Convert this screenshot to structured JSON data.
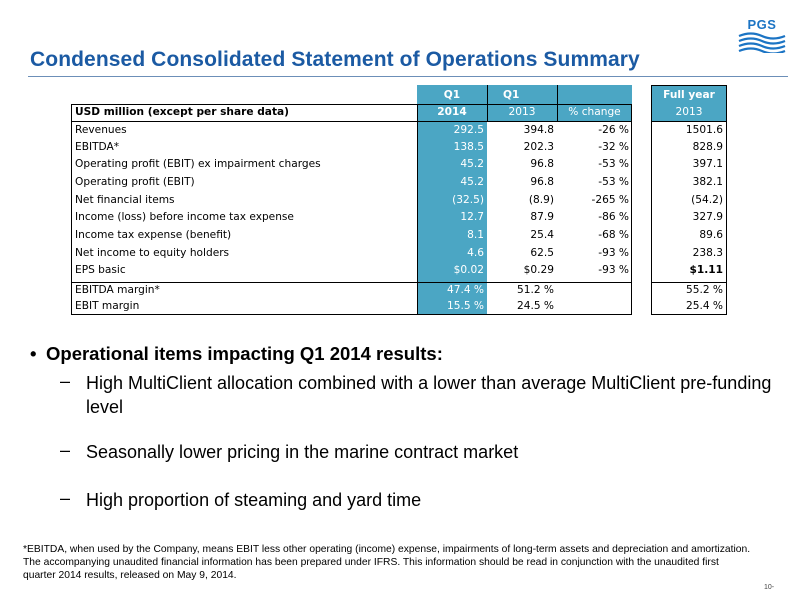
{
  "title": "Condensed Consolidated Statement of Operations Summary",
  "logo_text": "PGS",
  "table": {
    "header_top": {
      "col_2014": "Q1",
      "col_2013": "Q1",
      "col_fy": "Full year"
    },
    "header_bottom": {
      "label": "USD million (except per share data)",
      "col_2014": "2014",
      "col_2013": "2013",
      "col_pct": "% change",
      "col_fy": "2013"
    },
    "rows": [
      {
        "label": "Revenues",
        "v2014": "292.5",
        "v2013": "394.8",
        "pct": "-26 %",
        "fy": "1501.6"
      },
      {
        "label": "EBITDA*",
        "v2014": "138.5",
        "v2013": "202.3",
        "pct": "-32 %",
        "fy": "828.9"
      },
      {
        "label": "Operating profit (EBIT) ex impairment charges",
        "v2014": "45.2",
        "v2013": "96.8",
        "pct": "-53 %",
        "fy": "397.1"
      },
      {
        "label": "Operating profit (EBIT)",
        "v2014": "45.2",
        "v2013": "96.8",
        "pct": "-53 %",
        "fy": "382.1"
      },
      {
        "label": "Net financial items",
        "v2014": "(32.5)",
        "v2013": "(8.9)",
        "pct": "-265 %",
        "fy": "(54.2)"
      },
      {
        "label": "Income (loss) before income tax expense",
        "v2014": "12.7",
        "v2013": "87.9",
        "pct": "-86 %",
        "fy": "327.9"
      },
      {
        "label": "Income tax expense (benefit)",
        "v2014": "8.1",
        "v2013": "25.4",
        "pct": "-68 %",
        "fy": "89.6"
      },
      {
        "label": "Net income to equity holders",
        "v2014": "4.6",
        "v2013": "62.5",
        "pct": "-93 %",
        "fy": "238.3"
      },
      {
        "label": "EPS basic",
        "v2014": "$0.02",
        "v2013": "$0.29",
        "pct": "-93 %",
        "fy": "$1.11"
      },
      {
        "label": "EBITDA margin*",
        "v2014": "47.4 %",
        "v2013": "51.2 %",
        "pct": "",
        "fy": "55.2 %"
      },
      {
        "label": "EBIT margin",
        "v2014": "15.5 %",
        "v2013": "24.5 %",
        "pct": "",
        "fy": "25.4 %"
      }
    ]
  },
  "bullets": {
    "main": "Operational items impacting Q1 2014 results:",
    "bullet_char": "•",
    "dash_char": "–",
    "items": [
      "High MultiClient allocation combined with a lower than average MultiClient pre-funding level",
      "Seasonally lower pricing in the marine contract market",
      "High proportion of steaming and yard time"
    ]
  },
  "footnote": {
    "line1": "*EBITDA, when used by the Company, means EBIT less other operating (income) expense, impairments of long-term assets and depreciation and amortization.",
    "line2": "The accompanying unaudited financial information has been prepared under IFRS. This information should be read in conjunction with the unaudited first quarter 2014 results, released on May 9, 2014."
  },
  "page_number": "10-",
  "colors": {
    "title": "#1b5aa3",
    "teal_column": "#4ba6c4",
    "logo": "#1b74c4"
  }
}
